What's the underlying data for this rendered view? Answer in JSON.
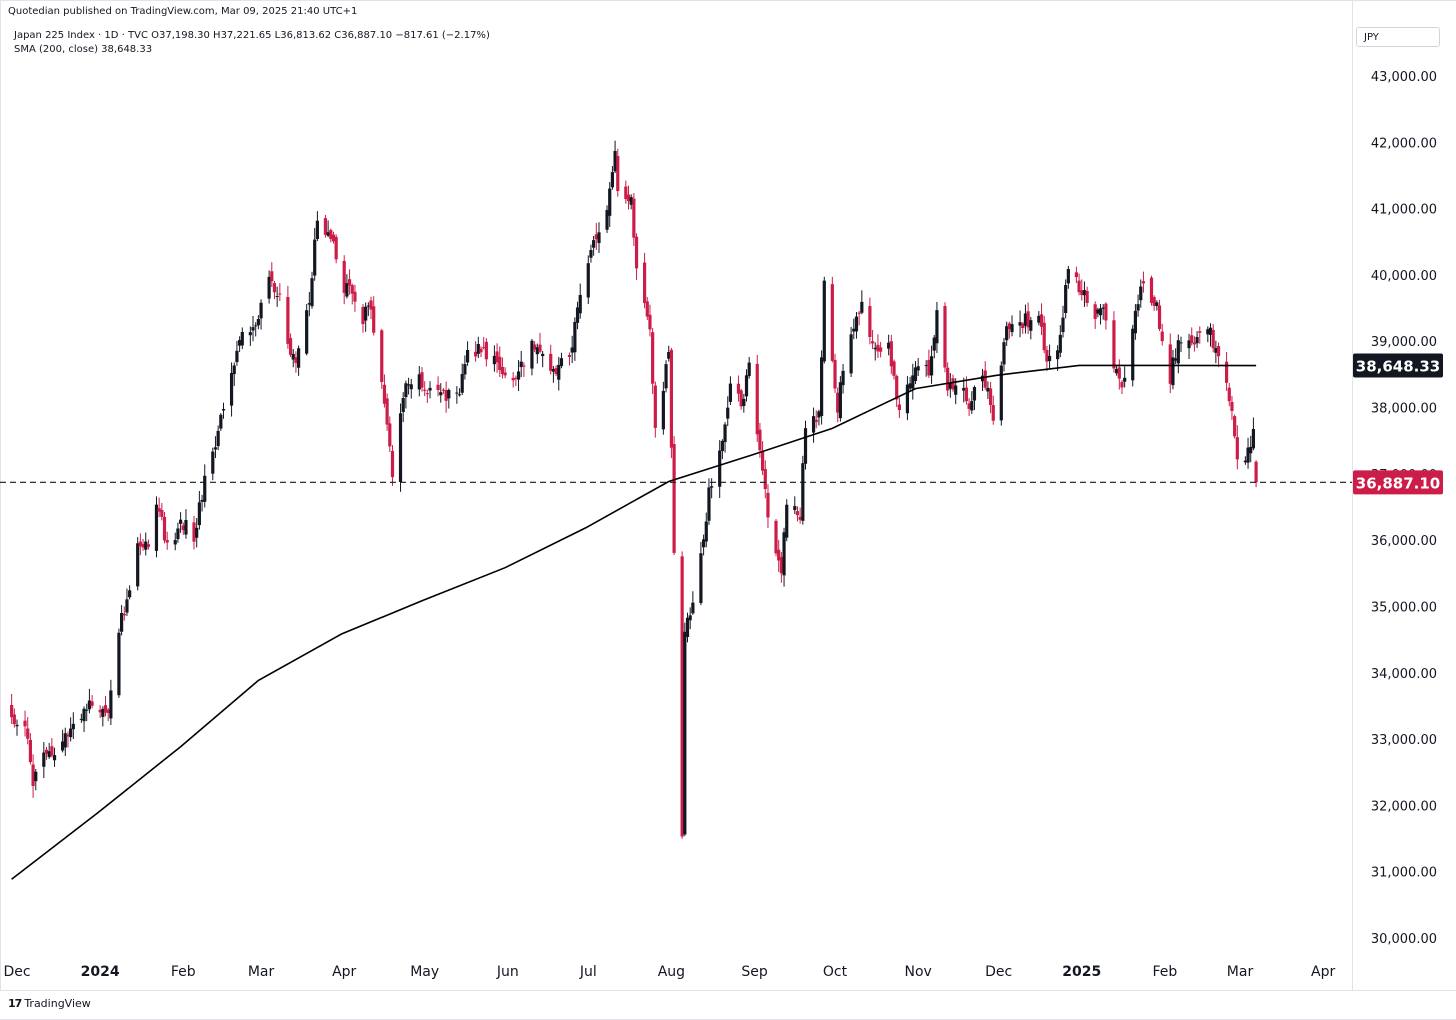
{
  "header": {
    "publisher": "Quotedian published on TradingView.com, Mar 09, 2025 21:40 UTC+1",
    "symbol_line": "Japan 225 Index · 1D · TVC  O37,198.30  H37,221.65  L36,813.62  C36,887.10  −817.61 (−2.17%)",
    "sma_line": "SMA (200, close)  38,648.33",
    "currency": "JPY"
  },
  "footer": {
    "brand": "TradingView",
    "logo_glyph": "17"
  },
  "colors": {
    "up": "#131722",
    "down": "#cc1c48",
    "sma": "#000000",
    "last_price_bg": "#cc1c48",
    "sma_badge_bg": "#131722"
  },
  "chart_data": {
    "type": "candlestick",
    "interval": "1D",
    "ylim": [
      29800,
      43500
    ],
    "y_ticks": [
      30000,
      31000,
      32000,
      33000,
      34000,
      35000,
      36000,
      37000,
      38000,
      39000,
      40000,
      41000,
      42000,
      43000
    ],
    "y_tick_labels": [
      "30,000.00",
      "31,000.00",
      "32,000.00",
      "33,000.00",
      "34,000.00",
      "35,000.00",
      "36,000.00",
      "37,000.00",
      "38,000.00",
      "39,000.00",
      "40,000.00",
      "41,000.00",
      "42,000.00",
      "43,000.00"
    ],
    "x_labels": [
      {
        "label": "Dec",
        "bold": false,
        "date": "2023-12-01"
      },
      {
        "label": "2024",
        "bold": true,
        "date": "2024-01-01"
      },
      {
        "label": "Feb",
        "bold": false,
        "date": "2024-02-01"
      },
      {
        "label": "Mar",
        "bold": false,
        "date": "2024-03-01"
      },
      {
        "label": "Apr",
        "bold": false,
        "date": "2024-04-01"
      },
      {
        "label": "May",
        "bold": false,
        "date": "2024-05-01"
      },
      {
        "label": "Jun",
        "bold": false,
        "date": "2024-06-01"
      },
      {
        "label": "Jul",
        "bold": false,
        "date": "2024-07-01"
      },
      {
        "label": "Aug",
        "bold": false,
        "date": "2024-08-01"
      },
      {
        "label": "Sep",
        "bold": false,
        "date": "2024-09-01"
      },
      {
        "label": "Oct",
        "bold": false,
        "date": "2024-10-01"
      },
      {
        "label": "Nov",
        "bold": false,
        "date": "2024-11-01"
      },
      {
        "label": "Dec",
        "bold": false,
        "date": "2024-12-01"
      },
      {
        "label": "2025",
        "bold": true,
        "date": "2025-01-01"
      },
      {
        "label": "Feb",
        "bold": false,
        "date": "2025-02-01"
      },
      {
        "label": "Mar",
        "bold": false,
        "date": "2025-03-01"
      },
      {
        "label": "Apr",
        "bold": false,
        "date": "2025-04-01"
      }
    ],
    "close_path": [
      [
        "2023-11-29",
        33400
      ],
      [
        "2023-12-04",
        33200
      ],
      [
        "2023-12-07",
        32400
      ],
      [
        "2023-12-11",
        32800
      ],
      [
        "2023-12-14",
        32700
      ],
      [
        "2023-12-19",
        33200
      ],
      [
        "2023-12-22",
        33150
      ],
      [
        "2023-12-28",
        33500
      ],
      [
        "2024-01-04",
        33300
      ],
      [
        "2024-01-08",
        34700
      ],
      [
        "2024-01-11",
        35100
      ],
      [
        "2024-01-15",
        35950
      ],
      [
        "2024-01-19",
        35850
      ],
      [
        "2024-01-22",
        36600
      ],
      [
        "2024-01-26",
        35900
      ],
      [
        "2024-01-31",
        36300
      ],
      [
        "2024-02-05",
        36100
      ],
      [
        "2024-02-09",
        36900
      ],
      [
        "2024-02-14",
        37700
      ],
      [
        "2024-02-19",
        38450
      ],
      [
        "2024-02-22",
        39100
      ],
      [
        "2024-02-28",
        39200
      ],
      [
        "2024-03-04",
        40050
      ],
      [
        "2024-03-08",
        39700
      ],
      [
        "2024-03-12",
        38800
      ],
      [
        "2024-03-15",
        38800
      ],
      [
        "2024-03-19",
        39700
      ],
      [
        "2024-03-22",
        40850
      ],
      [
        "2024-03-27",
        40600
      ],
      [
        "2024-04-01",
        39800
      ],
      [
        "2024-04-04",
        39800
      ],
      [
        "2024-04-08",
        39400
      ],
      [
        "2024-04-11",
        39500
      ],
      [
        "2024-04-16",
        38200
      ],
      [
        "2024-04-19",
        37070
      ],
      [
        "2024-04-24",
        38400
      ],
      [
        "2024-04-30",
        38400
      ],
      [
        "2024-05-08",
        38200
      ],
      [
        "2024-05-13",
        38150
      ],
      [
        "2024-05-17",
        38800
      ],
      [
        "2024-05-22",
        38900
      ],
      [
        "2024-05-28",
        38700
      ],
      [
        "2024-05-31",
        38500
      ],
      [
        "2024-06-05",
        38500
      ],
      [
        "2024-06-10",
        39000
      ],
      [
        "2024-06-14",
        38800
      ],
      [
        "2024-06-19",
        38600
      ],
      [
        "2024-06-24",
        38800
      ],
      [
        "2024-06-28",
        39600
      ],
      [
        "2024-07-03",
        40600
      ],
      [
        "2024-07-08",
        40900
      ],
      [
        "2024-07-11",
        41900
      ],
      [
        "2024-07-12",
        41200
      ],
      [
        "2024-07-17",
        41100
      ],
      [
        "2024-07-19",
        40100
      ],
      [
        "2024-07-24",
        39200
      ],
      [
        "2024-07-26",
        37700
      ],
      [
        "2024-07-31",
        38800
      ],
      [
        "2024-08-02",
        35900
      ],
      [
        "2024-08-05",
        31500
      ],
      [
        "2024-08-06",
        34700
      ],
      [
        "2024-08-09",
        35000
      ],
      [
        "2024-08-15",
        36700
      ],
      [
        "2024-08-19",
        37400
      ],
      [
        "2024-08-23",
        38300
      ],
      [
        "2024-08-28",
        38100
      ],
      [
        "2024-08-30",
        38700
      ],
      [
        "2024-09-04",
        37000
      ],
      [
        "2024-09-06",
        36400
      ],
      [
        "2024-09-11",
        35600
      ],
      [
        "2024-09-13",
        36600
      ],
      [
        "2024-09-18",
        36400
      ],
      [
        "2024-09-20",
        37700
      ],
      [
        "2024-09-25",
        37900
      ],
      [
        "2024-09-27",
        39800
      ],
      [
        "2024-10-02",
        38000
      ],
      [
        "2024-10-04",
        38600
      ],
      [
        "2024-10-09",
        39300
      ],
      [
        "2024-10-11",
        39600
      ],
      [
        "2024-10-16",
        38900
      ],
      [
        "2024-10-21",
        38900
      ],
      [
        "2024-10-25",
        37900
      ],
      [
        "2024-10-31",
        38700
      ],
      [
        "2024-11-05",
        38500
      ],
      [
        "2024-11-08",
        39500
      ],
      [
        "2024-11-12",
        38400
      ],
      [
        "2024-11-15",
        38400
      ],
      [
        "2024-11-20",
        38100
      ],
      [
        "2024-11-25",
        38600
      ],
      [
        "2024-11-29",
        37900
      ],
      [
        "2024-12-04",
        39300
      ],
      [
        "2024-12-10",
        39300
      ],
      [
        "2024-12-16",
        39400
      ],
      [
        "2024-12-19",
        38800
      ],
      [
        "2024-12-24",
        39000
      ],
      [
        "2024-12-27",
        40200
      ],
      [
        "2025-01-06",
        39400
      ],
      [
        "2025-01-09",
        39600
      ],
      [
        "2025-01-14",
        38500
      ],
      [
        "2025-01-17",
        38400
      ],
      [
        "2025-01-22",
        39700
      ],
      [
        "2025-01-24",
        40000
      ],
      [
        "2025-01-29",
        39500
      ],
      [
        "2025-02-03",
        38500
      ],
      [
        "2025-02-06",
        39000
      ],
      [
        "2025-02-12",
        38900
      ],
      [
        "2025-02-17",
        39200
      ],
      [
        "2025-02-20",
        38900
      ],
      [
        "2025-02-26",
        38000
      ],
      [
        "2025-02-28",
        37200
      ],
      [
        "2025-03-04",
        37300
      ],
      [
        "2025-03-06",
        37700
      ],
      [
        "2025-03-07",
        36887
      ]
    ],
    "series": [
      {
        "name": "SMA (200, close)",
        "values": [
          [
            "2023-11-29",
            30900
          ],
          [
            "2023-12-31",
            31900
          ],
          [
            "2024-01-31",
            32900
          ],
          [
            "2024-02-29",
            33900
          ],
          [
            "2024-03-31",
            34600
          ],
          [
            "2024-04-30",
            35100
          ],
          [
            "2024-05-31",
            35600
          ],
          [
            "2024-06-30",
            36200
          ],
          [
            "2024-07-31",
            36900
          ],
          [
            "2024-08-31",
            37300
          ],
          [
            "2024-09-30",
            37700
          ],
          [
            "2024-10-31",
            38300
          ],
          [
            "2024-11-30",
            38500
          ],
          [
            "2024-12-31",
            38650
          ],
          [
            "2025-01-31",
            38650
          ],
          [
            "2025-03-07",
            38648
          ]
        ]
      }
    ],
    "last_price": {
      "value": 36887.1,
      "label": "36,887.10"
    },
    "sma_value": {
      "value": 38648.33,
      "label": "38,648.33"
    }
  }
}
